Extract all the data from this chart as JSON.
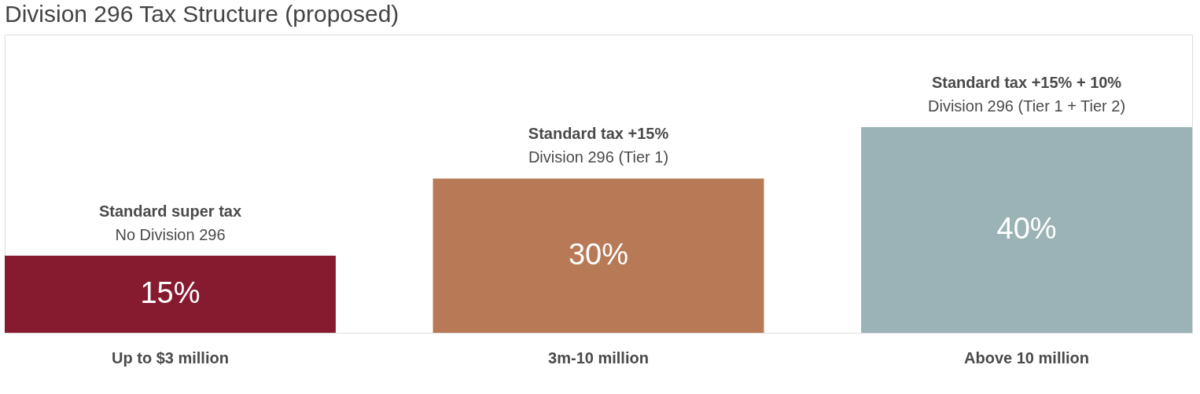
{
  "chart_data": {
    "type": "bar",
    "title": "Division 296 Tax Structure (proposed)",
    "categories": [
      "Up to $3 million",
      "3m-10 million",
      "Above 10 million"
    ],
    "values": [
      15,
      30,
      40
    ],
    "colors": [
      "#861b30",
      "#b87a56",
      "#9bb3b6"
    ],
    "value_labels": [
      "15%",
      "30%",
      "40%"
    ],
    "annotations": [
      {
        "text": "Standard super tax",
        "x": "Up to $3 million",
        "y": 15
      },
      {
        "text": "No Division 296",
        "x": "Up to $3 million",
        "y": 15
      },
      {
        "text": "Standard tax +15%",
        "x": "3m-10 million",
        "y": 30
      },
      {
        "text": "Division 296 (Tier 1)",
        "x": "3m-10 million",
        "y": 30
      },
      {
        "text": "Standard tax +15% + 10%",
        "x": "Above 10 million",
        "y": 40
      },
      {
        "text": "Division 296 (Tier 1 + Tier 2)",
        "x": "Above 10 million",
        "y": 40
      }
    ]
  }
}
